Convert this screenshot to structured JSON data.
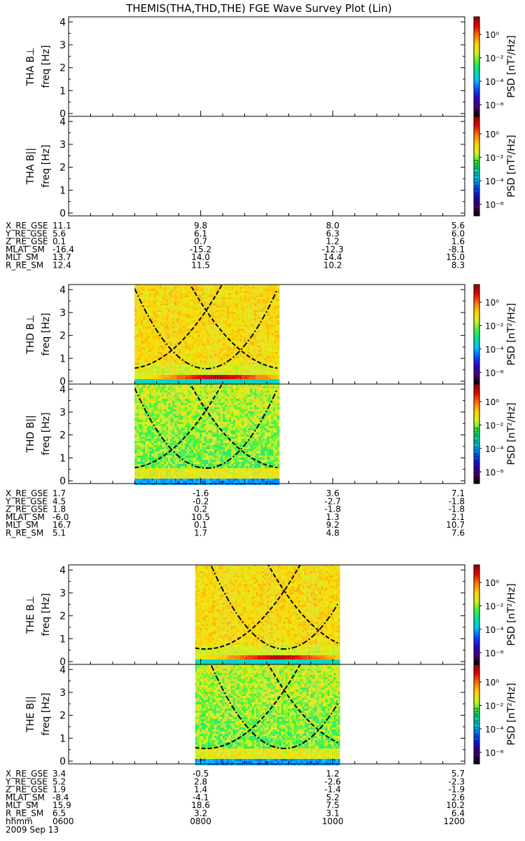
{
  "chart_data": {
    "type": "heatmap",
    "title": "THEMIS(THA,THD,THE) FGE Wave Survey Plot (Lin)",
    "date_label": "2009 Sep 13",
    "time_axis": {
      "name": "hhmm",
      "ticks": [
        "0600",
        "0800",
        "1000",
        "1200"
      ],
      "range": [
        "06:00",
        "12:00"
      ]
    },
    "freq_range": [
      0,
      4.1
    ],
    "freq_ticks": [
      "0",
      "1",
      "2",
      "3",
      "4"
    ],
    "colorbar": {
      "label": "PSD [nT²/Hz]",
      "ticks": [
        "10⁰",
        "10⁻²",
        "10⁻⁴",
        "10⁻⁶"
      ],
      "log_range": [
        -7,
        1.5
      ],
      "colors": [
        "#000000",
        "#4a0070",
        "#2c00c8",
        "#0050ff",
        "#00c0ff",
        "#00e0a0",
        "#40f040",
        "#d8f020",
        "#ffd000",
        "#ff7000",
        "#e00000",
        "#900000"
      ],
      "stamp": "Sat Sep 15 20:22:25 2012"
    },
    "probes": [
      {
        "name": "THA",
        "panels": [
          {
            "label": "THA B⊥",
            "ylabel": "freq [Hz]",
            "data_range": null,
            "line_base_freq": 0
          },
          {
            "label": "THA B||",
            "ylabel": "freq [Hz]",
            "data_range": null,
            "line_base_freq": 0
          }
        ],
        "ephemeris": [
          {
            "name": "X_RE_GSE",
            "values": [
              "11.1",
              "9.8",
              "8.0",
              "5.6"
            ]
          },
          {
            "name": "Y_RE_GSE",
            "values": [
              "5.6",
              "6.1",
              "6.3",
              "6.0"
            ]
          },
          {
            "name": "Z_RE_GSE",
            "values": [
              "0.1",
              "0.7",
              "1.2",
              "1.6"
            ]
          },
          {
            "name": "MLAT_SM",
            "values": [
              "-16.4",
              "-15.2",
              "-12.3",
              "-8.1"
            ]
          },
          {
            "name": "MLT_SM",
            "values": [
              "13.7",
              "14.0",
              "14.4",
              "15.0"
            ]
          },
          {
            "name": "R_RE_SM",
            "values": [
              "12.4",
              "11.5",
              "10.2",
              "8.3"
            ]
          }
        ]
      },
      {
        "name": "THD",
        "panels": [
          {
            "label": "THD B⊥",
            "ylabel": "freq [Hz]",
            "data_range": [
              "07:00",
              "09:10"
            ],
            "line_base_freq": 0.25
          },
          {
            "label": "THD B||",
            "ylabel": "freq [Hz]",
            "data_range": [
              "07:00",
              "09:10"
            ],
            "line_base_freq": 0
          }
        ],
        "ephemeris": [
          {
            "name": "X_RE_GSE",
            "values": [
              "1.7",
              "-1.6",
              "3.6",
              "7.1"
            ]
          },
          {
            "name": "Y_RE_GSE",
            "values": [
              "4.5",
              "-0.2",
              "-2.7",
              "-1.8"
            ]
          },
          {
            "name": "Z_RE_GSE",
            "values": [
              "1.8",
              "0.2",
              "-1.8",
              "-1.8"
            ]
          },
          {
            "name": "MLAT_SM",
            "values": [
              "-6.0",
              "10.5",
              "1.3",
              "2.1"
            ]
          },
          {
            "name": "MLT_SM",
            "values": [
              "16.7",
              "0.1",
              "9.2",
              "10.7"
            ]
          },
          {
            "name": "R_RE_SM",
            "values": [
              "5.1",
              "1.7",
              "4.8",
              "7.6"
            ]
          }
        ]
      },
      {
        "name": "THE",
        "panels": [
          {
            "label": "THE B⊥",
            "ylabel": "freq [Hz]",
            "data_range": [
              "07:55",
              "10:05"
            ],
            "line_base_freq": 0.2
          },
          {
            "label": "THE B||",
            "ylabel": "freq [Hz]",
            "data_range": [
              "07:55",
              "10:05"
            ],
            "line_base_freq": 0
          }
        ],
        "ephemeris": [
          {
            "name": "X_RE_GSE",
            "values": [
              "3.4",
              "-0.5",
              "1.2",
              "5.7"
            ]
          },
          {
            "name": "Y_RE_GSE",
            "values": [
              "5.2",
              "2.8",
              "-2.6",
              "-2.3"
            ]
          },
          {
            "name": "Z_RE_GSE",
            "values": [
              "1.9",
              "1.4",
              "-1.4",
              "-1.9"
            ]
          },
          {
            "name": "MLAT_SM",
            "values": [
              "-8.4",
              "-4.1",
              "5.2",
              "2.6"
            ]
          },
          {
            "name": "MLT_SM",
            "values": [
              "15.9",
              "18.6",
              "7.5",
              "10.2"
            ]
          },
          {
            "name": "R_RE_SM",
            "values": [
              "6.5",
              "3.2",
              "3.1",
              "6.4"
            ]
          }
        ]
      }
    ]
  }
}
